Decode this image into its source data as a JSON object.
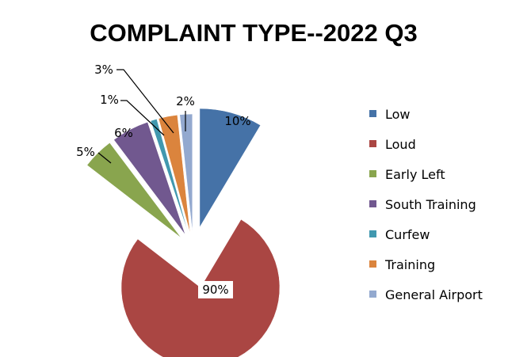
{
  "chart_data": {
    "type": "pie",
    "title": "COMPLAINT TYPE--2022 Q3",
    "categories": [
      "Low",
      "Loud",
      "Early Left",
      "South Training",
      "Curfew",
      "Training",
      "General Airport"
    ],
    "values": [
      10,
      90,
      5,
      6,
      1,
      3,
      2
    ],
    "data_labels": [
      "10%",
      "90%",
      "5%",
      "6%",
      "1%",
      "3%",
      "2%"
    ],
    "colors": [
      "#4572A7",
      "#AA4643",
      "#89A54E",
      "#71588F",
      "#4198AF",
      "#DB843D",
      "#93A9CF"
    ],
    "exploded": true,
    "legend": "right"
  }
}
